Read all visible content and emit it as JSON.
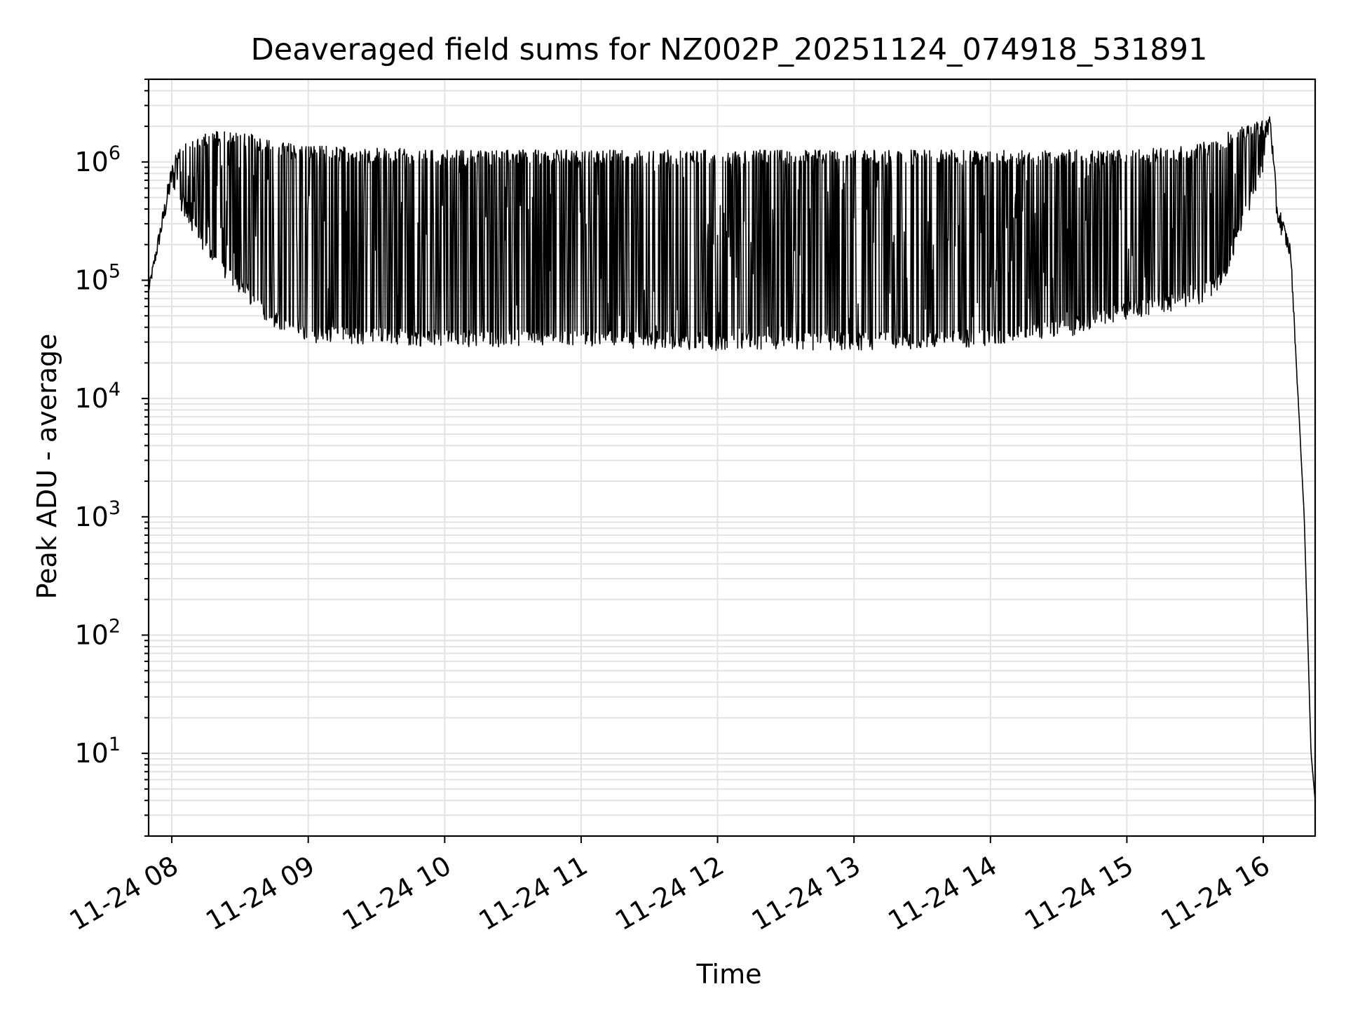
{
  "chart_data": {
    "type": "line",
    "title": "Deaveraged field sums for NZ002P_20251124_074918_531891",
    "xlabel": "Time",
    "ylabel": "Peak ADU - average",
    "yscale": "log",
    "ylim": [
      2,
      5000000
    ],
    "xlim_hours": [
      7.83,
      16.38
    ],
    "grid": true,
    "line_color": "#000000",
    "grid_color": "#e3e3e3",
    "x_ticks": [
      {
        "hour": 8,
        "label": "11-24 08"
      },
      {
        "hour": 9,
        "label": "11-24 09"
      },
      {
        "hour": 10,
        "label": "11-24 10"
      },
      {
        "hour": 11,
        "label": "11-24 11"
      },
      {
        "hour": 12,
        "label": "11-24 12"
      },
      {
        "hour": 13,
        "label": "11-24 13"
      },
      {
        "hour": 14,
        "label": "11-24 14"
      },
      {
        "hour": 15,
        "label": "11-24 15"
      },
      {
        "hour": 16,
        "label": "11-24 16"
      }
    ],
    "y_ticks": [
      {
        "exp": 1,
        "base": "10",
        "sup": "1"
      },
      {
        "exp": 2,
        "base": "10",
        "sup": "2"
      },
      {
        "exp": 3,
        "base": "10",
        "sup": "3"
      },
      {
        "exp": 4,
        "base": "10",
        "sup": "4"
      },
      {
        "exp": 5,
        "base": "10",
        "sup": "5"
      },
      {
        "exp": 6,
        "base": "10",
        "sup": "6"
      }
    ],
    "series": [
      {
        "name": "field sums",
        "envelope_hours": [
          7.83,
          8.0,
          8.1,
          8.25,
          8.5,
          8.75,
          9.0,
          10.0,
          11.0,
          12.0,
          13.0,
          14.0,
          14.6,
          15.0,
          15.5,
          15.7,
          16.0,
          16.05,
          16.1,
          16.2,
          16.3,
          16.35,
          16.38
        ],
        "envelope_high": [
          90000,
          1000000,
          1300000,
          1600000,
          1600000,
          1300000,
          1200000,
          1100000,
          1100000,
          1100000,
          1100000,
          1100000,
          1100000,
          1100000,
          1200000,
          1500000,
          2000000,
          2700000,
          500000,
          200000,
          1000,
          10,
          4
        ],
        "envelope_low": [
          75000,
          600000,
          400000,
          180000,
          90000,
          45000,
          35000,
          32000,
          32000,
          30000,
          30000,
          32000,
          40000,
          55000,
          70000,
          100000,
          1000000,
          2000000,
          300000,
          150000,
          1000,
          10,
          4
        ]
      }
    ]
  }
}
